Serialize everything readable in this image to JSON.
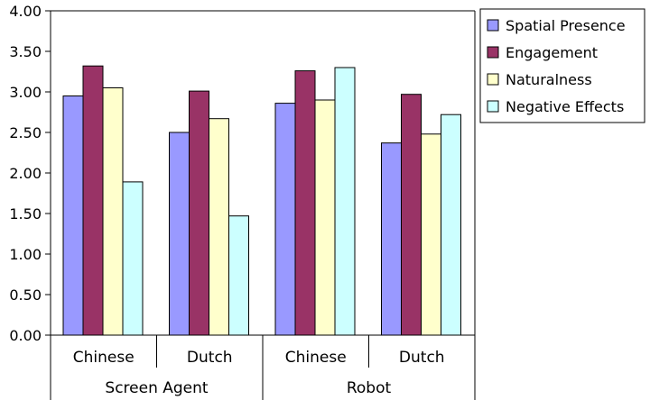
{
  "chart_data": {
    "type": "bar",
    "title": "",
    "xlabel": "",
    "ylabel": "",
    "ylim": [
      0,
      4
    ],
    "yticks": [
      "0.00",
      "0.50",
      "1.00",
      "1.50",
      "2.00",
      "2.50",
      "3.00",
      "3.50",
      "4.00"
    ],
    "groups": [
      {
        "label": "Screen Agent",
        "categories": [
          "Chinese",
          "Dutch"
        ]
      },
      {
        "label": "Robot",
        "categories": [
          "Chinese",
          "Dutch"
        ]
      }
    ],
    "categories": [
      "Chinese",
      "Dutch",
      "Chinese",
      "Dutch"
    ],
    "series": [
      {
        "name": "Spatial Presence",
        "color": "#9999ff",
        "values": [
          2.95,
          2.5,
          2.86,
          2.37
        ]
      },
      {
        "name": "Engagement",
        "color": "#993366",
        "values": [
          3.32,
          3.01,
          3.26,
          2.97
        ]
      },
      {
        "name": "Naturalness",
        "color": "#ffffcc",
        "values": [
          3.05,
          2.67,
          2.9,
          2.48
        ]
      },
      {
        "name": "Negative Effects",
        "color": "#ccffff",
        "values": [
          1.89,
          1.47,
          3.3,
          2.72
        ]
      }
    ],
    "legend": "right",
    "grid": false
  }
}
